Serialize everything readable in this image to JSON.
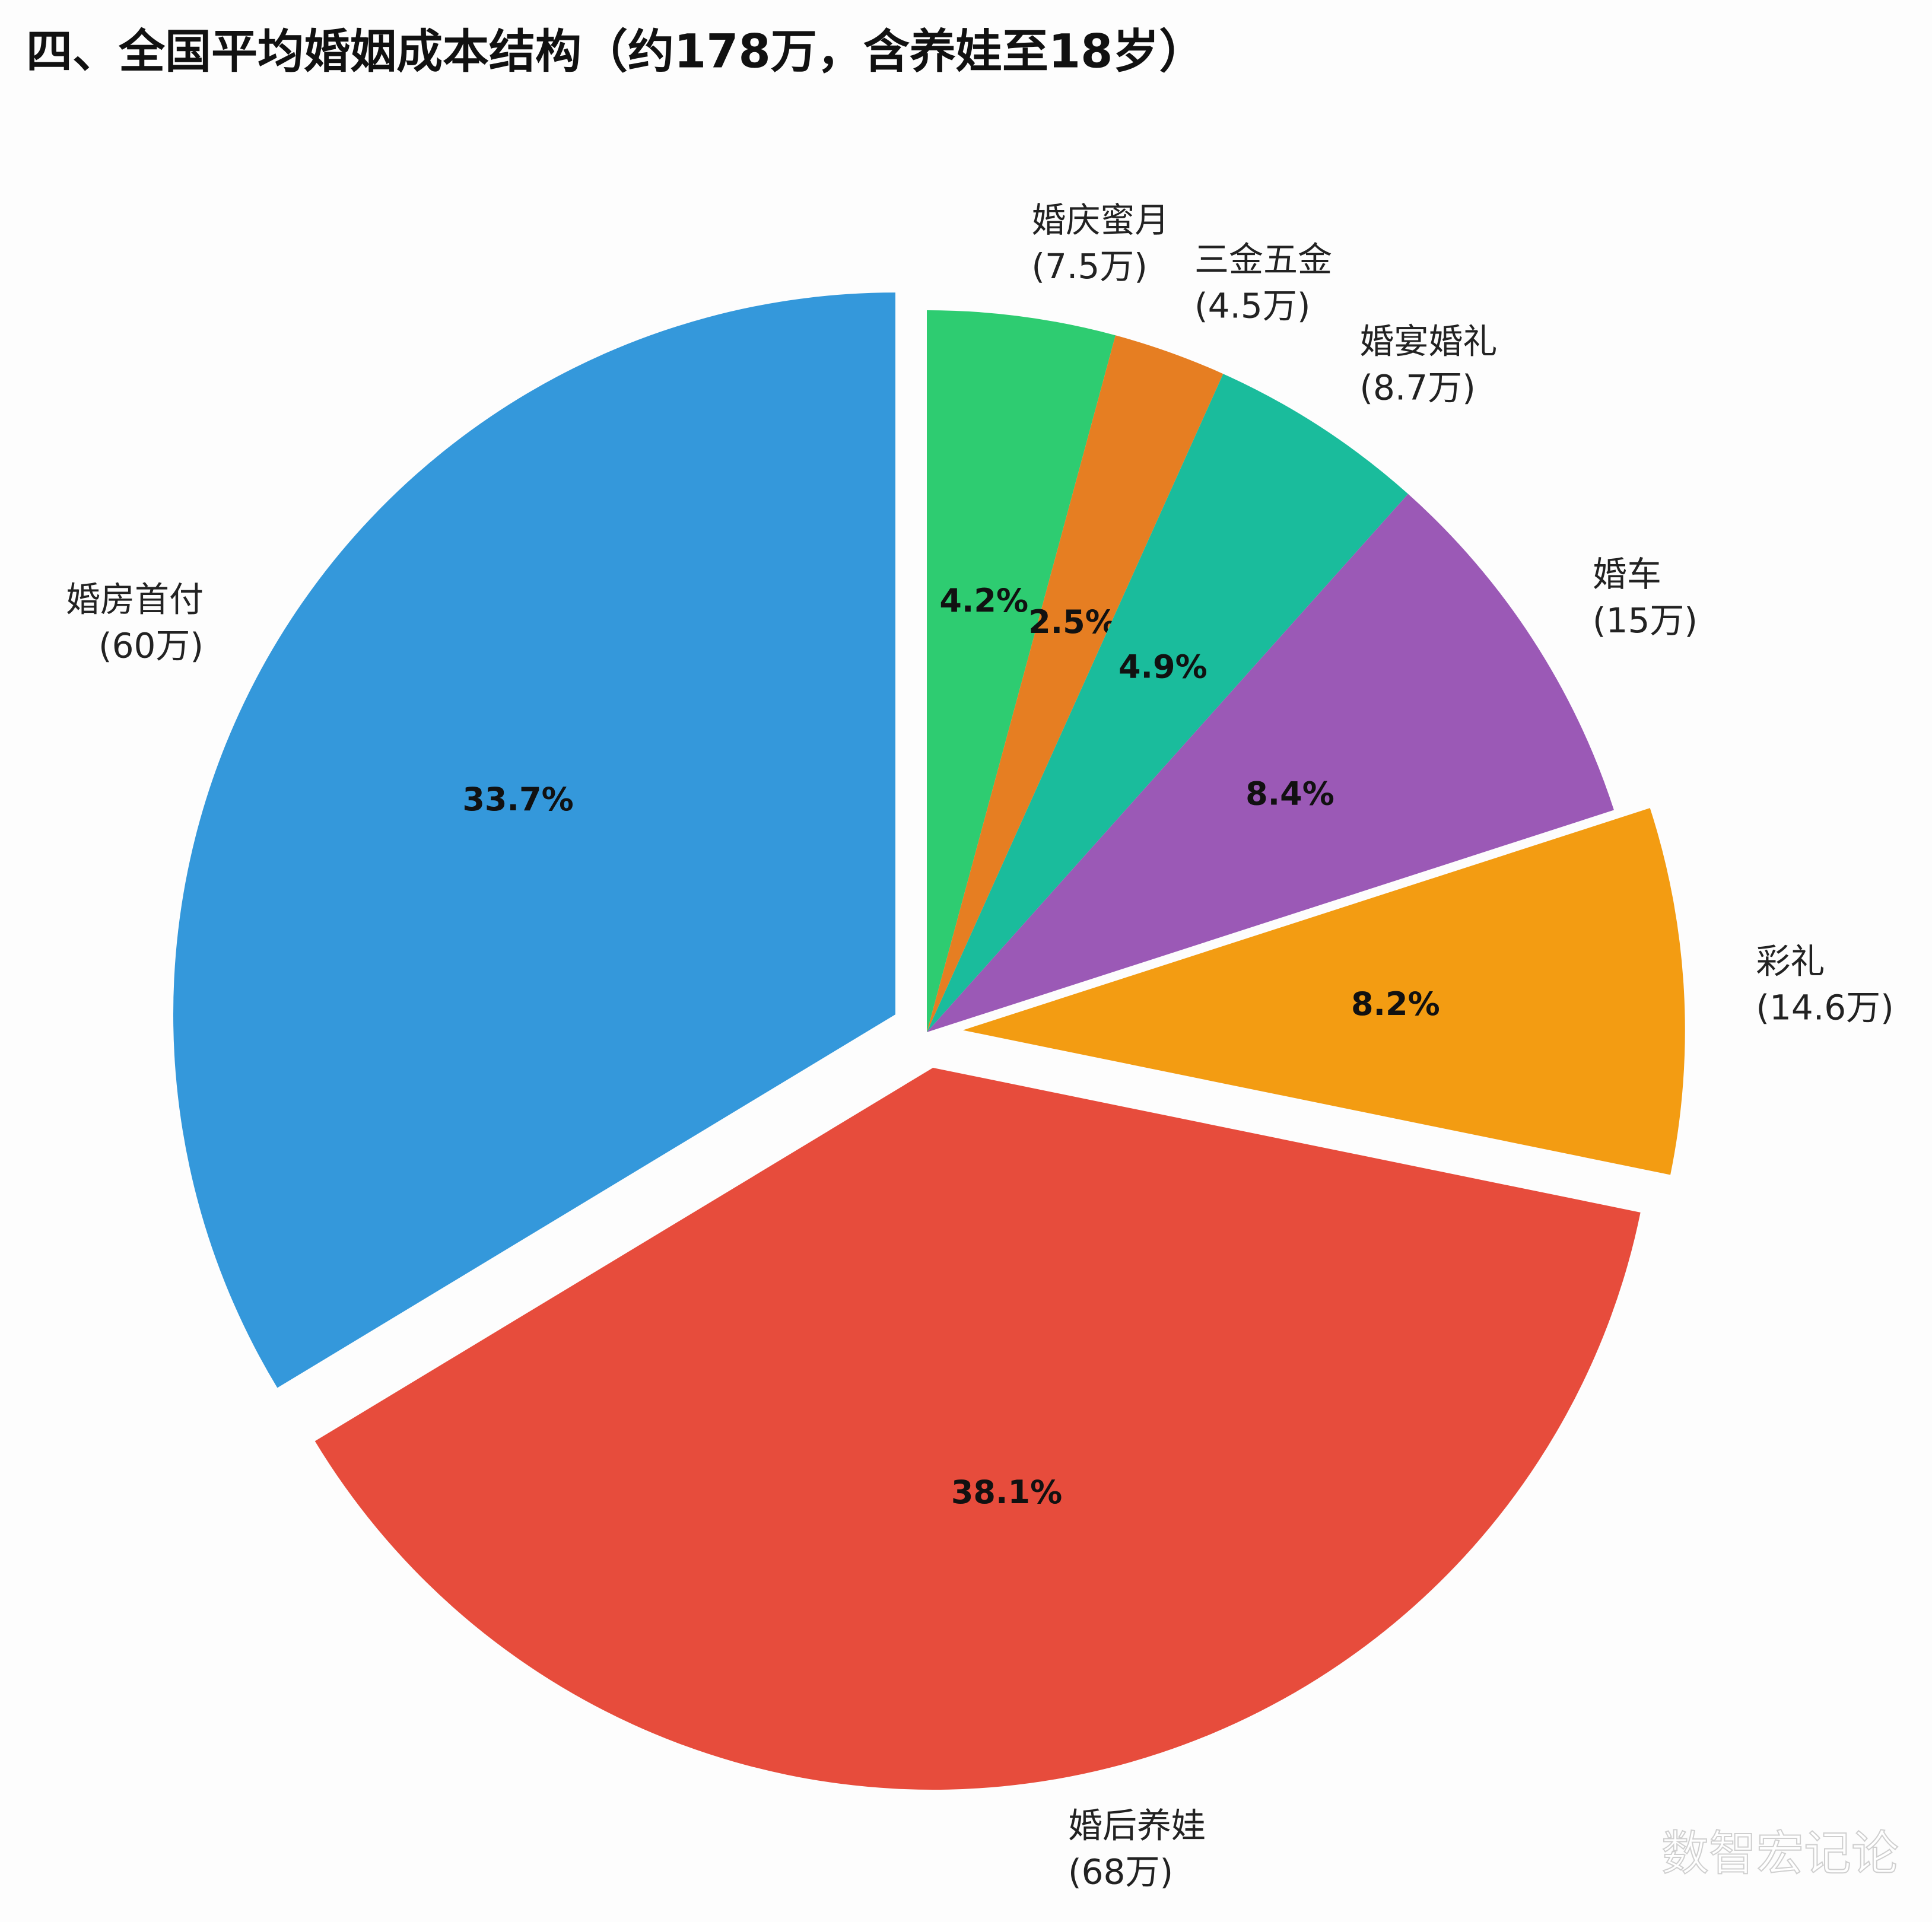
{
  "chart_data": {
    "type": "pie",
    "title": "四、全国平均婚姻成本结构（约178万，含养娃至18岁）",
    "categories": [
      "婚庆蜜月",
      "三金五金",
      "婚宴婚礼",
      "婚车",
      "彩礼",
      "婚后养娃",
      "婚房首付"
    ],
    "values": [
      7.5,
      4.5,
      8.7,
      15,
      14.6,
      68,
      60
    ],
    "value_labels": [
      "(7.5万)",
      "(4.5万)",
      "(8.7万)",
      "(15万)",
      "(14.6万)",
      "(68万)",
      "(60万)"
    ],
    "percent_labels": [
      "4.2%",
      "2.5%",
      "4.9%",
      "8.4%",
      "8.2%",
      "38.1%",
      "33.7%"
    ],
    "colors": [
      "#2ecc71",
      "#e67e22",
      "#1abc9c",
      "#9b59b6",
      "#f39c12",
      "#e74c3c",
      "#3498db"
    ],
    "explode": [
      0,
      0,
      0,
      0,
      0.05,
      0.05,
      0.05
    ],
    "watermark": "数智宏记论"
  }
}
